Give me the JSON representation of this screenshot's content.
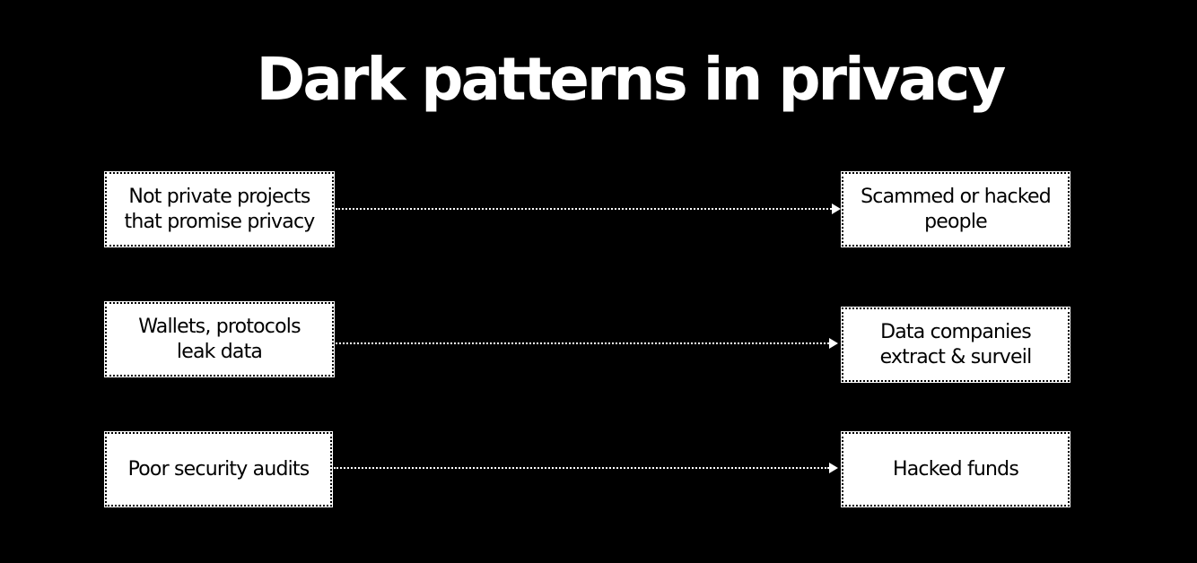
{
  "title": "Dark patterns in privacy",
  "rows": [
    {
      "cause": [
        "Not private projects",
        "that promise privacy"
      ],
      "effect": [
        "Scammed or hacked",
        "people"
      ]
    },
    {
      "cause": [
        "Wallets, protocols",
        "leak data"
      ],
      "effect": [
        "Data companies",
        "extract & surveil"
      ]
    },
    {
      "cause": [
        "Poor security audits"
      ],
      "effect": [
        "Hacked funds"
      ]
    }
  ],
  "colors": {
    "background": "#000000",
    "box_fill": "#ffffff",
    "text": "#000000",
    "title": "#ffffff",
    "connector": "#ffffff"
  }
}
